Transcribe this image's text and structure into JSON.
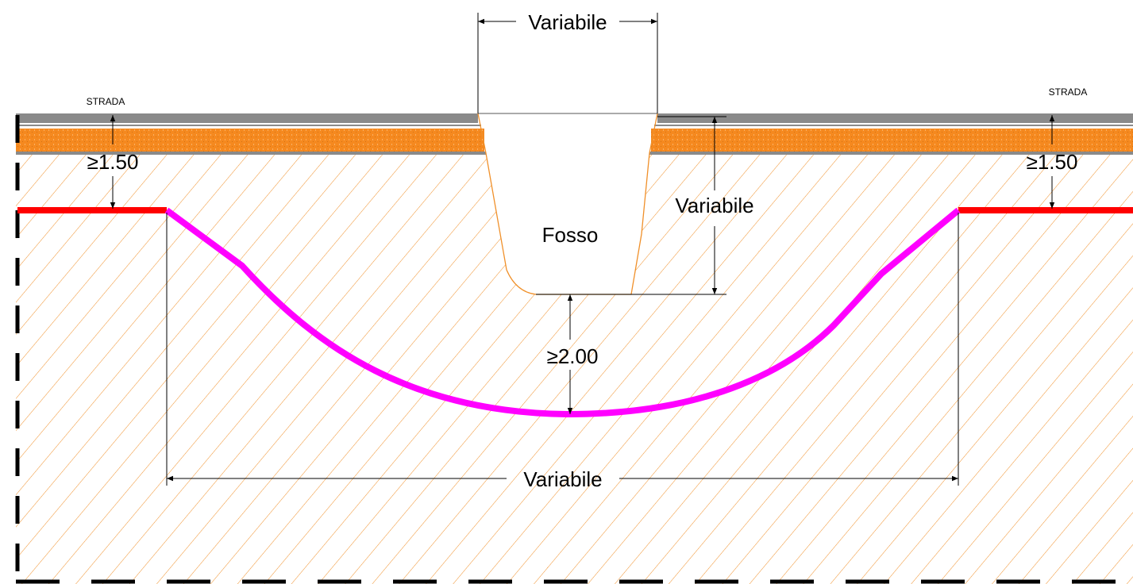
{
  "labels": {
    "road_left": "STRADA",
    "road_right": "STRADA",
    "ditch_width": "Variabile",
    "ditch_depth": "Variabile",
    "ditch": "Fosso",
    "min_cover_left": "≥1.50",
    "min_cover_right": "≥1.50",
    "min_below_ditch": "≥2.00",
    "crossing_length": "Variabile"
  },
  "colors": {
    "hatch": "#f0902a",
    "asphalt": "#8a8a8a",
    "subbase": "#f5891f",
    "pipe_straight": "#ff0000",
    "pipe_curve": "#ff00ff",
    "dimension": "#000000"
  }
}
